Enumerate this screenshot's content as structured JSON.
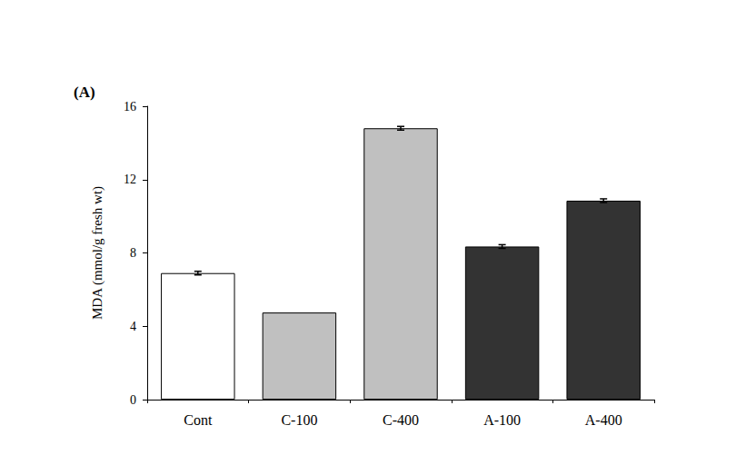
{
  "chart_data": {
    "type": "bar",
    "title": "(A)",
    "y_label": "MDA (mmol/g fresh wt)",
    "categories": [
      "Cont",
      "C-100",
      "C-400",
      "A-100",
      "A-400"
    ],
    "values": [
      6.9,
      4.75,
      14.8,
      8.35,
      10.85
    ],
    "errors": [
      0.1,
      0,
      0.1,
      0.1,
      0.1
    ],
    "colors": [
      "#ffffff",
      "#c0c0c0",
      "#c0c0c0",
      "#333333",
      "#333333"
    ],
    "ylim": [
      0,
      16
    ],
    "yticks": [
      0,
      4,
      8,
      12,
      16
    ],
    "grid": false
  }
}
